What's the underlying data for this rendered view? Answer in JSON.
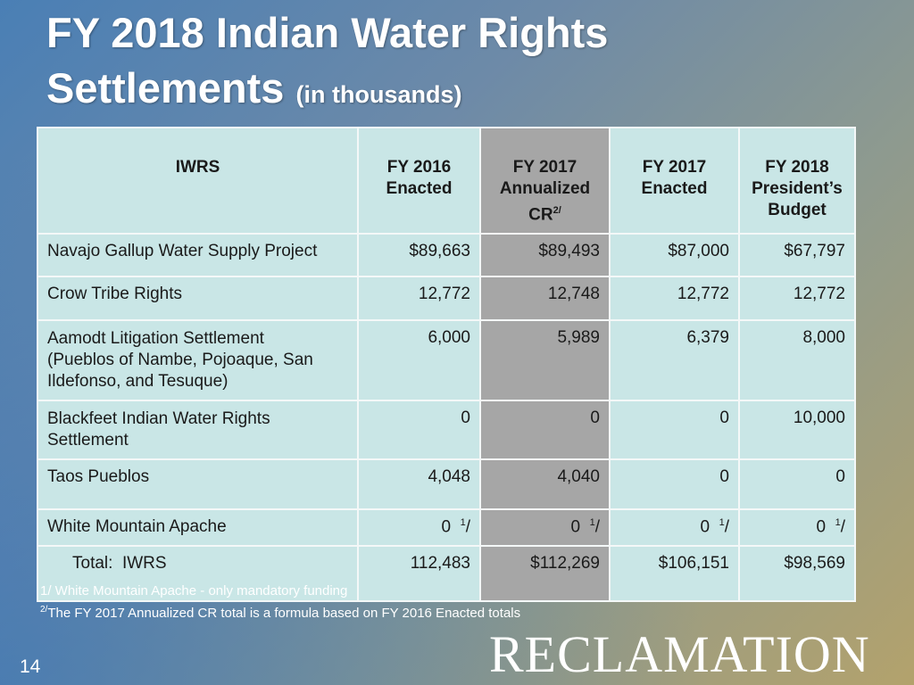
{
  "title": {
    "line1": "FY 2018 Indian Water Rights",
    "line2": "Settlements",
    "subtitle": "(in thousands)"
  },
  "table": {
    "headers": [
      [
        "IWRS"
      ],
      [
        "FY 2016",
        "Enacted"
      ],
      [
        "FY 2017",
        "Annualized",
        "CR",
        "2/"
      ],
      [
        "FY 2017",
        "Enacted"
      ],
      [
        "FY 2018",
        "President’s",
        "Budget"
      ]
    ],
    "rows": [
      {
        "label": [
          "Navajo Gallup Water Supply Project"
        ],
        "values": [
          "$89,663",
          "$89,493",
          "$87,000",
          "$67,797"
        ]
      },
      {
        "label": [
          "Crow Tribe Rights"
        ],
        "values": [
          "12,772",
          "12,748",
          "12,772",
          "12,772"
        ]
      },
      {
        "label": [
          "Aamodt Litigation Settlement",
          "(Pueblos of Nambe, Pojoaque, San",
          "Ildefonso, and Tesuque)"
        ],
        "values": [
          "6,000",
          "5,989",
          "6,379",
          "8,000"
        ]
      },
      {
        "label": [
          "Blackfeet Indian Water Rights",
          "Settlement"
        ],
        "values": [
          "0",
          "0",
          "0",
          "10,000"
        ]
      },
      {
        "label": [
          "Taos Pueblos"
        ],
        "values": [
          "4,048",
          "4,040",
          "0",
          "0"
        ]
      },
      {
        "label": [
          "White Mountain Apache"
        ],
        "values": [
          "0",
          "0",
          "0",
          "0"
        ],
        "footnote_mark": "1",
        "footnote_sep": "/"
      },
      {
        "label": [
          "Total:  IWRS"
        ],
        "values": [
          "112,483",
          "$112,269",
          "$106,151",
          "$98,569"
        ]
      }
    ]
  },
  "footnotes": [
    {
      "mark": "",
      "text": "1/ White Mountain Apache - only mandatory funding"
    },
    {
      "mark": "2/",
      "text": "The FY 2017 Annualized CR total is a formula based on FY 2016 Enacted totals"
    }
  ],
  "page_number": "14",
  "logo_text": "RECLAMATION"
}
